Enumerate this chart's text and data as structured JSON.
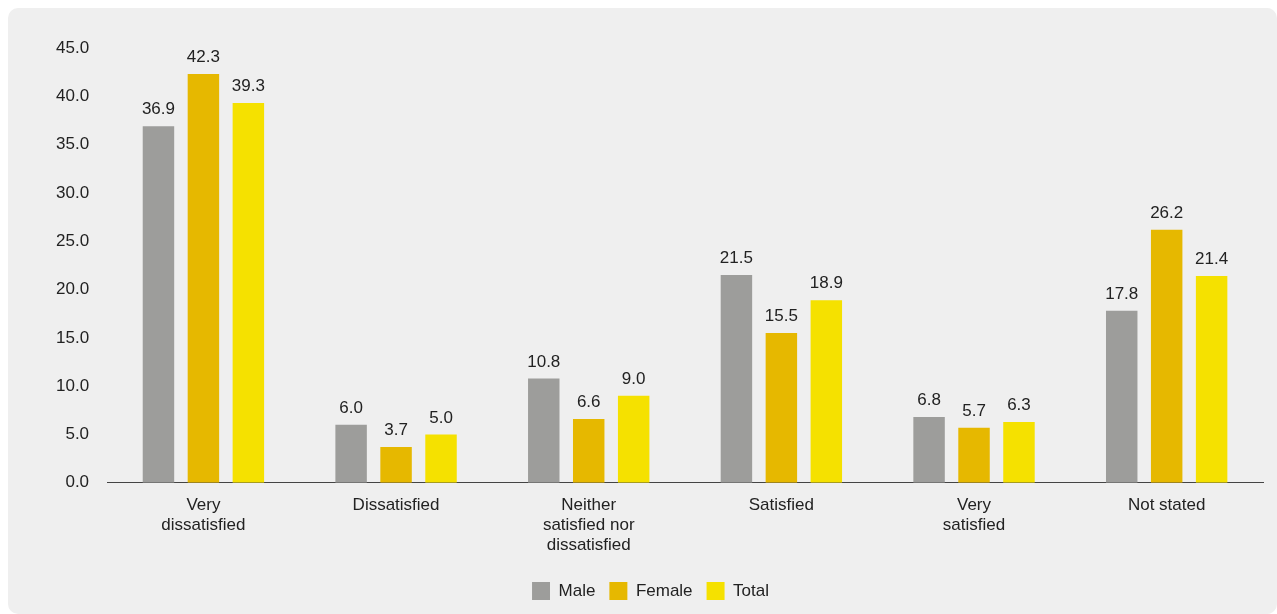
{
  "chart_data": {
    "type": "bar",
    "categories": [
      "Very dissatisfied",
      "Dissatisfied",
      "Neither satisfied nor dissatisfied",
      "Satisfied",
      "Very satisfied",
      "Not stated"
    ],
    "series": [
      {
        "name": "Male",
        "color": "#9d9d9b",
        "values": [
          36.9,
          6.0,
          10.8,
          21.5,
          6.8,
          17.8
        ],
        "value_labels": [
          "36.9",
          "6.0",
          "10.8",
          "21.5",
          "6.8",
          "17.8"
        ]
      },
      {
        "name": "Female",
        "color": "#e6b800",
        "values": [
          42.3,
          3.7,
          6.6,
          15.5,
          5.7,
          26.2
        ],
        "value_labels": [
          "42.3",
          "3.7",
          "6.6",
          "15.5",
          "5.7",
          "26.2"
        ]
      },
      {
        "name": "Total",
        "color": "#f5e100",
        "values": [
          39.3,
          5.0,
          9.0,
          18.9,
          6.3,
          21.4
        ],
        "value_labels": [
          "39.3",
          "5.0",
          "9.0",
          "18.9",
          "6.3",
          "21.4"
        ]
      }
    ],
    "ylim": [
      0,
      45
    ],
    "yticks": [
      {
        "value": 0,
        "label": "0.0"
      },
      {
        "value": 5,
        "label": "5.0"
      },
      {
        "value": 10,
        "label": "10.0"
      },
      {
        "value": 15,
        "label": "15.0"
      },
      {
        "value": 20,
        "label": "20.0"
      },
      {
        "value": 25,
        "label": "25.0"
      },
      {
        "value": 30,
        "label": "30.0"
      },
      {
        "value": 35,
        "label": "35.0"
      },
      {
        "value": 40,
        "label": "40.0"
      },
      {
        "value": 45,
        "label": "45.0"
      }
    ],
    "grid": false,
    "legend": "bottom"
  }
}
